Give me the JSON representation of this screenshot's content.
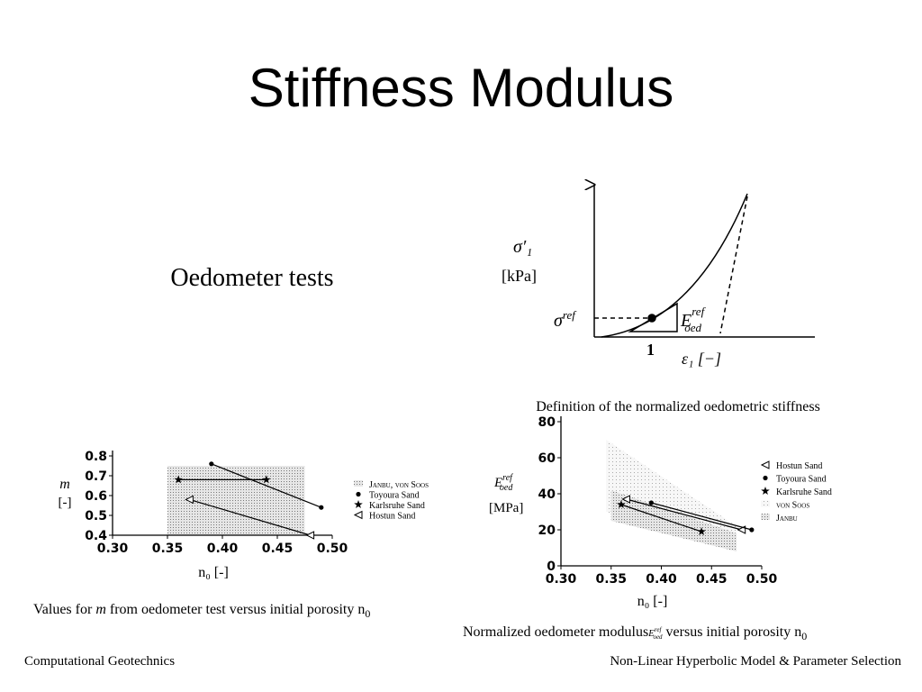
{
  "title": "Stiffness Modulus",
  "subtitle": "Oedometer tests",
  "diagram": {
    "y_label": "σ′₁",
    "y_unit": "[kPa]",
    "ref_stress": {
      "base": "σ",
      "sup": "ref"
    },
    "modulus": {
      "base": "E",
      "sup": "ref",
      "sub": "oed"
    },
    "slope": "1",
    "x_label": "ε₁ [−]",
    "caption": "Definition of the normalized oedometric stiffness"
  },
  "captions": [
    {
      "pre": "Values for ",
      "var": "m",
      "post": " from oedometer test versus initial porosity n",
      "sub": "0"
    },
    {
      "pre": "Normalized oedometer modulus",
      "base": "E",
      "sup": "ref",
      "sub2": "oed",
      "post": " versus initial porosity n",
      "sub": "0"
    }
  ],
  "footer": {
    "left": "Computational Geotechnics",
    "right": "Non-Linear Hyperbolic Model & Parameter Selection"
  },
  "chart_data": [
    {
      "type": "line",
      "ylabel": "m",
      "yunit": "[-]",
      "xlabel": "n₀ [-]",
      "xlim": [
        0.3,
        0.5
      ],
      "xticks": [
        {
          "value": 0.3,
          "label": "0.30"
        },
        0.35,
        {
          "value": 0.4,
          "label": "0.40"
        },
        0.45,
        {
          "value": 0.5,
          "label": "0.50"
        }
      ],
      "ylim": [
        0.4,
        0.8
      ],
      "yticks": [
        0.4,
        0.5,
        0.6,
        0.7,
        0.8
      ],
      "series": [
        {
          "name": "Janbu, von Soos",
          "marker": "band",
          "pattern": "dense",
          "x": [
            0.35,
            0.475
          ],
          "values": [
            0.75,
            0.75
          ],
          "lower": [
            0.4,
            0.4
          ]
        },
        {
          "name": "Toyoura Sand",
          "marker": "dot",
          "x": [
            0.39,
            0.49
          ],
          "values": [
            0.76,
            0.54
          ]
        },
        {
          "name": "Karlsruhe Sand",
          "marker": "star",
          "x": [
            0.36,
            0.44
          ],
          "values": [
            0.68,
            0.68
          ]
        },
        {
          "name": "Hostun Sand",
          "marker": "triangle",
          "x": [
            0.37,
            0.48
          ],
          "values": [
            0.58,
            0.4
          ]
        }
      ]
    },
    {
      "type": "line",
      "ylabel": {
        "base": "E",
        "sup": "ref",
        "sub": "oed"
      },
      "yunit": "[MPa]",
      "xlabel": "n₀ [-]",
      "xlim": [
        0.3,
        0.5
      ],
      "xticks": [
        {
          "value": 0.3,
          "label": "0.30"
        },
        0.35,
        {
          "value": 0.4,
          "label": "0.40"
        },
        0.45,
        {
          "value": 0.5,
          "label": "0.50"
        }
      ],
      "ylim": [
        0,
        80
      ],
      "yticks": [
        0,
        20,
        40,
        60,
        80
      ],
      "series": [
        {
          "name": "Hostun Sand",
          "marker": "triangle",
          "x": [
            0.365,
            0.48
          ],
          "values": [
            37,
            20
          ]
        },
        {
          "name": "Toyoura Sand",
          "marker": "dot",
          "x": [
            0.39,
            0.49
          ],
          "values": [
            35,
            20
          ]
        },
        {
          "name": "Karlsruhe Sand",
          "marker": "star",
          "x": [
            0.36,
            0.44
          ],
          "values": [
            34,
            19
          ]
        },
        {
          "name": "von Soos",
          "marker": "band",
          "pattern": "sparse",
          "x": [
            0.345,
            0.475
          ],
          "values": [
            70,
            22
          ],
          "lower": [
            30,
            10
          ]
        },
        {
          "name": "Janbu",
          "marker": "band",
          "pattern": "dense",
          "x": [
            0.35,
            0.475
          ],
          "values": [
            42,
            18
          ],
          "lower": [
            25,
            8
          ]
        }
      ]
    }
  ]
}
